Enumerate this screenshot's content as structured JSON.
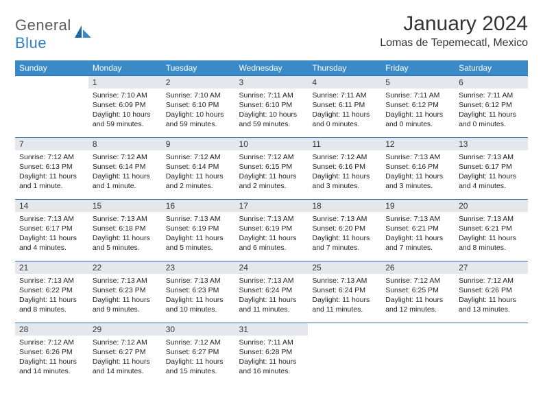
{
  "brand": {
    "name1": "General",
    "name2": "Blue"
  },
  "title": "January 2024",
  "location": "Lomas de Tepemecatl, Mexico",
  "colors": {
    "header_bg": "#3a8ac8",
    "header_text": "#ffffff",
    "daynum_bg": "#e4e8ec",
    "border": "#2f6aa8",
    "text": "#222222",
    "brand_gray": "#5a5a5a",
    "brand_blue": "#2a7ec6"
  },
  "weekdays": [
    "Sunday",
    "Monday",
    "Tuesday",
    "Wednesday",
    "Thursday",
    "Friday",
    "Saturday"
  ],
  "weeks": [
    {
      "nums": [
        "",
        "1",
        "2",
        "3",
        "4",
        "5",
        "6"
      ],
      "cells": [
        null,
        {
          "sunrise": "7:10 AM",
          "sunset": "6:09 PM",
          "daylight": "10 hours and 59 minutes."
        },
        {
          "sunrise": "7:10 AM",
          "sunset": "6:10 PM",
          "daylight": "10 hours and 59 minutes."
        },
        {
          "sunrise": "7:11 AM",
          "sunset": "6:10 PM",
          "daylight": "10 hours and 59 minutes."
        },
        {
          "sunrise": "7:11 AM",
          "sunset": "6:11 PM",
          "daylight": "11 hours and 0 minutes."
        },
        {
          "sunrise": "7:11 AM",
          "sunset": "6:12 PM",
          "daylight": "11 hours and 0 minutes."
        },
        {
          "sunrise": "7:11 AM",
          "sunset": "6:12 PM",
          "daylight": "11 hours and 0 minutes."
        }
      ]
    },
    {
      "nums": [
        "7",
        "8",
        "9",
        "10",
        "11",
        "12",
        "13"
      ],
      "cells": [
        {
          "sunrise": "7:12 AM",
          "sunset": "6:13 PM",
          "daylight": "11 hours and 1 minute."
        },
        {
          "sunrise": "7:12 AM",
          "sunset": "6:14 PM",
          "daylight": "11 hours and 1 minute."
        },
        {
          "sunrise": "7:12 AM",
          "sunset": "6:14 PM",
          "daylight": "11 hours and 2 minutes."
        },
        {
          "sunrise": "7:12 AM",
          "sunset": "6:15 PM",
          "daylight": "11 hours and 2 minutes."
        },
        {
          "sunrise": "7:12 AM",
          "sunset": "6:16 PM",
          "daylight": "11 hours and 3 minutes."
        },
        {
          "sunrise": "7:13 AM",
          "sunset": "6:16 PM",
          "daylight": "11 hours and 3 minutes."
        },
        {
          "sunrise": "7:13 AM",
          "sunset": "6:17 PM",
          "daylight": "11 hours and 4 minutes."
        }
      ]
    },
    {
      "nums": [
        "14",
        "15",
        "16",
        "17",
        "18",
        "19",
        "20"
      ],
      "cells": [
        {
          "sunrise": "7:13 AM",
          "sunset": "6:17 PM",
          "daylight": "11 hours and 4 minutes."
        },
        {
          "sunrise": "7:13 AM",
          "sunset": "6:18 PM",
          "daylight": "11 hours and 5 minutes."
        },
        {
          "sunrise": "7:13 AM",
          "sunset": "6:19 PM",
          "daylight": "11 hours and 5 minutes."
        },
        {
          "sunrise": "7:13 AM",
          "sunset": "6:19 PM",
          "daylight": "11 hours and 6 minutes."
        },
        {
          "sunrise": "7:13 AM",
          "sunset": "6:20 PM",
          "daylight": "11 hours and 7 minutes."
        },
        {
          "sunrise": "7:13 AM",
          "sunset": "6:21 PM",
          "daylight": "11 hours and 7 minutes."
        },
        {
          "sunrise": "7:13 AM",
          "sunset": "6:21 PM",
          "daylight": "11 hours and 8 minutes."
        }
      ]
    },
    {
      "nums": [
        "21",
        "22",
        "23",
        "24",
        "25",
        "26",
        "27"
      ],
      "cells": [
        {
          "sunrise": "7:13 AM",
          "sunset": "6:22 PM",
          "daylight": "11 hours and 8 minutes."
        },
        {
          "sunrise": "7:13 AM",
          "sunset": "6:23 PM",
          "daylight": "11 hours and 9 minutes."
        },
        {
          "sunrise": "7:13 AM",
          "sunset": "6:23 PM",
          "daylight": "11 hours and 10 minutes."
        },
        {
          "sunrise": "7:13 AM",
          "sunset": "6:24 PM",
          "daylight": "11 hours and 11 minutes."
        },
        {
          "sunrise": "7:13 AM",
          "sunset": "6:24 PM",
          "daylight": "11 hours and 11 minutes."
        },
        {
          "sunrise": "7:12 AM",
          "sunset": "6:25 PM",
          "daylight": "11 hours and 12 minutes."
        },
        {
          "sunrise": "7:12 AM",
          "sunset": "6:26 PM",
          "daylight": "11 hours and 13 minutes."
        }
      ]
    },
    {
      "nums": [
        "28",
        "29",
        "30",
        "31",
        "",
        "",
        ""
      ],
      "cells": [
        {
          "sunrise": "7:12 AM",
          "sunset": "6:26 PM",
          "daylight": "11 hours and 14 minutes."
        },
        {
          "sunrise": "7:12 AM",
          "sunset": "6:27 PM",
          "daylight": "11 hours and 14 minutes."
        },
        {
          "sunrise": "7:12 AM",
          "sunset": "6:27 PM",
          "daylight": "11 hours and 15 minutes."
        },
        {
          "sunrise": "7:11 AM",
          "sunset": "6:28 PM",
          "daylight": "11 hours and 16 minutes."
        },
        null,
        null,
        null
      ]
    }
  ]
}
